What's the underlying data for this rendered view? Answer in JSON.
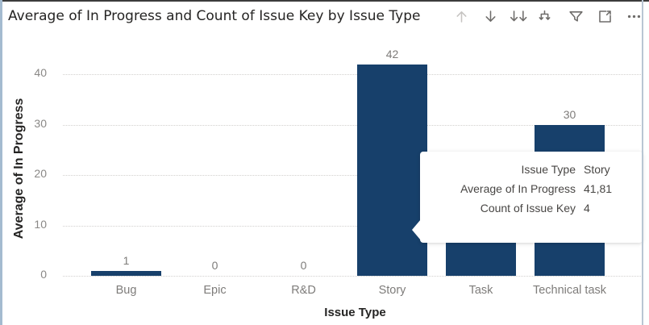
{
  "header": {
    "title": "Average of In Progress and Count of Issue Key by Issue Type",
    "icons": [
      {
        "name": "drill-up",
        "disabled": true
      },
      {
        "name": "drill-down",
        "disabled": false
      },
      {
        "name": "go-to-next-level",
        "disabled": false
      },
      {
        "name": "expand-all-down-one-level",
        "disabled": false
      },
      {
        "name": "filter",
        "disabled": false
      },
      {
        "name": "focus-mode",
        "disabled": false
      },
      {
        "name": "more-options",
        "disabled": false
      }
    ]
  },
  "chart_data": {
    "type": "bar",
    "title": "Average of In Progress and Count of Issue Key by Issue Type",
    "xlabel": "Issue Type",
    "ylabel": "Average of In Progress",
    "ylim": [
      0,
      45
    ],
    "yticks": [
      0,
      10,
      20,
      30,
      40
    ],
    "grid": true,
    "legend": "none",
    "categories": [
      "Bug",
      "Epic",
      "R&D",
      "Story",
      "Task",
      "Technical task"
    ],
    "series": [
      {
        "name": "Average of In Progress",
        "values": [
          1,
          0,
          0,
          42,
          null,
          30
        ]
      }
    ],
    "data_labels": [
      "1",
      "0",
      "0",
      "42",
      "",
      "30"
    ],
    "bar_color": "#17406B",
    "notes": "Task bar value and its data label are hidden behind the tooltip; only the lower part of the Task bar is visible"
  },
  "tooltip": {
    "rows": [
      {
        "label": "Issue Type",
        "value": "Story"
      },
      {
        "label": "Average of In Progress",
        "value": "41,81"
      },
      {
        "label": "Count of Issue Key",
        "value": "4"
      }
    ]
  },
  "colors": {
    "bar": "#17406B",
    "title_text": "#252423",
    "tick_text": "#8A8886",
    "label_text": "#7E7C7A",
    "gridline": "#D2D0CE",
    "tooltip_text": "#484644",
    "border_top": "#3C3C3C",
    "border_left": "#A4BBD0",
    "border_right": "#B9C6D3"
  }
}
